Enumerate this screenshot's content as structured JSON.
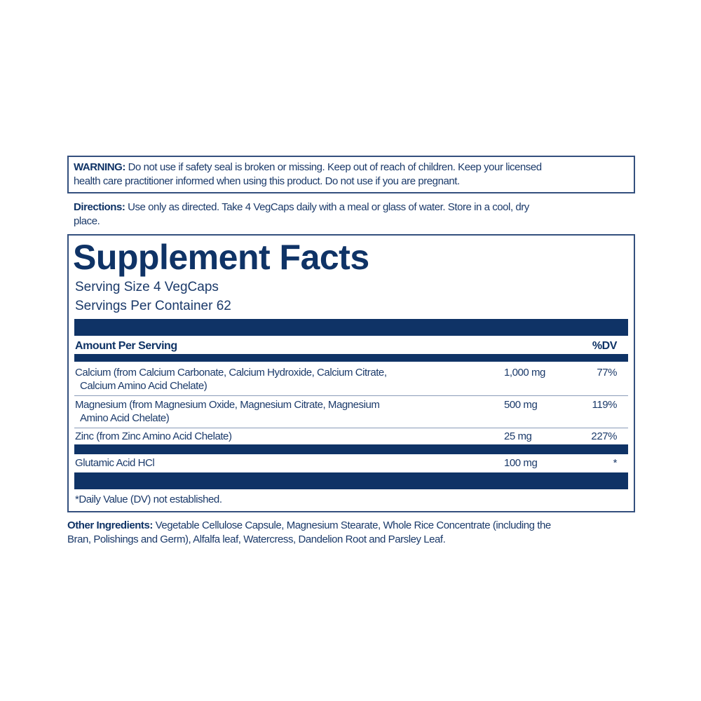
{
  "warning": {
    "label": "WARNING:",
    "lines": [
      "Do not use if safety seal is broken or missing. Keep out of reach of children. Keep your licensed",
      "health care practitioner informed when using this product. Do not use if you are pregnant."
    ]
  },
  "directions": {
    "label": "Directions:",
    "lines": [
      "Use only as directed. Take 4 VegCaps daily with a meal or glass of water. Store in a cool, dry",
      "place."
    ]
  },
  "facts": {
    "title": "Supplement Facts",
    "serving_size": "Serving Size 4 VegCaps",
    "servings_per_container": "Servings Per Container 62",
    "header_amount": "Amount Per Serving",
    "header_dv": "%DV",
    "rows": [
      {
        "name": "Calcium (from Calcium Carbonate, Calcium Hydroxide, Calcium Citrate,",
        "name2": "Calcium Amino Acid Chelate)",
        "amount": "1,000 mg",
        "dv": "77%"
      },
      {
        "name": "Magnesium (from Magnesium Oxide, Magnesium Citrate, Magnesium",
        "name2": "Amino Acid Chelate)",
        "amount": "500 mg",
        "dv": "119%"
      },
      {
        "name": "Zinc (from Zinc Amino Acid Chelate)",
        "amount": "25 mg",
        "dv": "227%"
      },
      {
        "name": "Glutamic Acid HCl",
        "amount": "100 mg",
        "dv": "*"
      }
    ],
    "footnote": "*Daily Value (DV) not established."
  },
  "other": {
    "label": "Other Ingredients:",
    "lines": [
      "Vegetable Cellulose Capsule, Magnesium Stearate, Whole Rice Concentrate (including the",
      "Bran, Polishings and Germ), Alfalfa leaf, Watercress, Dandelion Root and Parsley Leaf."
    ]
  },
  "colors": {
    "navy": "#0f3366",
    "text": "#1b3a6a"
  }
}
